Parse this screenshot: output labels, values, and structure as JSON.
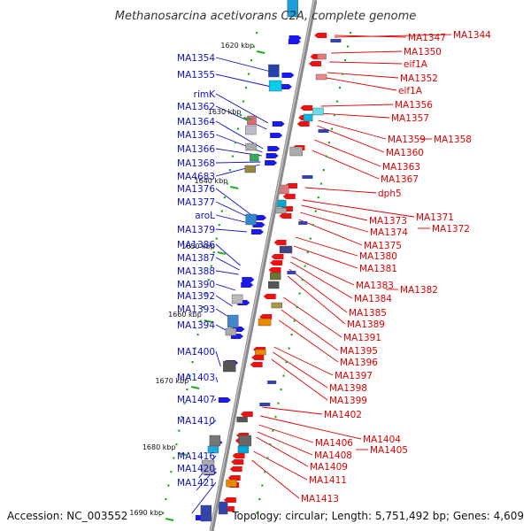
{
  "title": "Methanosarcina acetivorans C2A, complete genome",
  "accession": "Accession: NC_003552",
  "topology": "Topology: circular; Length: 5,751,492 bp; Genes: 4,609",
  "colors": {
    "left_labels": "#1010cc",
    "right_labels": "#dd0000",
    "backbone": "#888888",
    "tick_green": "#22aa22",
    "forward_strand": "#1a1aee",
    "reverse_strand": "#ee1111"
  },
  "ticks": [
    "1620 kbp",
    "1630 kbp",
    "1640 kbp",
    "1650 kbp",
    "1660 kbp",
    "1670 kbp",
    "1680 kbp",
    "1690 kbp"
  ],
  "left_genes": [
    "MA1354",
    "MA1355",
    "rimK",
    "MA1362",
    "MA1364",
    "MA1365",
    "MA1366",
    "MA1368",
    "MA4683",
    "MA1376",
    "MA1377",
    "aroL",
    "MA1379",
    "MA1386",
    "MA1387",
    "MA1388",
    "MA1390",
    "MA1392",
    "MA1393",
    "MA1394",
    "MA1400",
    "MA1403",
    "MA1407",
    "MA1410",
    "MA1416",
    "MA1420",
    "MA1421"
  ],
  "right_genes": [
    "MA1347",
    "MA1344",
    "MA1350",
    "eif1A",
    "MA1352",
    "eif1A",
    "MA1356",
    "MA1357",
    "MA1359",
    "MA1358",
    "MA1360",
    "MA1363",
    "MA1367",
    "dph5",
    "MA1371",
    "MA1373",
    "MA1372",
    "MA1374",
    "MA1375",
    "MA1380",
    "MA1381",
    "MA1383",
    "MA1382",
    "MA1384",
    "MA1385",
    "MA1389",
    "MA1391",
    "MA1395",
    "MA1396",
    "MA1397",
    "MA1398",
    "MA1399",
    "MA1402",
    "MA1404",
    "MA1406",
    "MA1405",
    "MA1408",
    "MA1409",
    "MA1411",
    "MA1413"
  ]
}
